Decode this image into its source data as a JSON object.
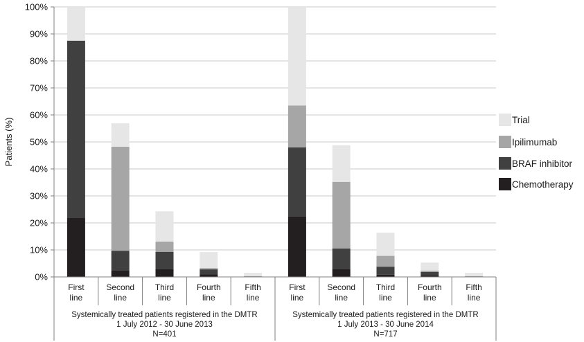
{
  "chart_data": {
    "type": "bar",
    "stacked": true,
    "ylabel": "Patients (%)",
    "ylim": [
      0,
      100
    ],
    "yticks": [
      "0%",
      "10%",
      "20%",
      "30%",
      "40%",
      "50%",
      "60%",
      "70%",
      "80%",
      "90%",
      "100%"
    ],
    "grid": true,
    "legend_position": "right",
    "categories": [
      "First line",
      "Second line",
      "Third line",
      "Fourth line",
      "Fifth line"
    ],
    "category_lines": [
      [
        "First",
        "line"
      ],
      [
        "Second",
        "line"
      ],
      [
        "Third",
        "line"
      ],
      [
        "Fourth",
        "line"
      ],
      [
        "Fifth",
        "line"
      ]
    ],
    "legend_order": [
      "Trial",
      "Ipilimumab",
      "BRAF inhibitor",
      "Chemotherapy"
    ],
    "colors": {
      "Chemotherapy": "#231f20",
      "BRAF inhibitor": "#404040",
      "Ipilimumab": "#a6a6a6",
      "Trial": "#e6e6e6"
    },
    "groups": [
      {
        "label_lines": [
          "Systemically treated patients registered in the DMTR",
          "1 July 2012 - 30 June 2013",
          "N=401"
        ],
        "series": [
          {
            "name": "Chemotherapy",
            "values": [
              22,
              2.5,
              3,
              1,
              0
            ]
          },
          {
            "name": "BRAF inhibitor",
            "values": [
              65.5,
              7.2,
              6.3,
              1.8,
              0
            ]
          },
          {
            "name": "Ipilimumab",
            "values": [
              0,
              38.5,
              3.8,
              0.5,
              0.3
            ]
          },
          {
            "name": "Trial",
            "values": [
              12.5,
              8.7,
              11.2,
              5.9,
              1.2
            ]
          }
        ]
      },
      {
        "label_lines": [
          "Systemically treated patients registered in the DMTR",
          "1 July 2013 - 30 June 2014",
          "N=717"
        ],
        "series": [
          {
            "name": "Chemotherapy",
            "values": [
              22.5,
              3,
              0.8,
              0.5,
              0
            ]
          },
          {
            "name": "BRAF inhibitor",
            "values": [
              25.5,
              7.5,
              3,
              1.3,
              0
            ]
          },
          {
            "name": "Ipilimumab",
            "values": [
              15.5,
              24.7,
              4,
              0.5,
              0.3
            ]
          },
          {
            "name": "Trial",
            "values": [
              36.5,
              13.6,
              8.6,
              3,
              1.2
            ]
          }
        ]
      }
    ]
  }
}
